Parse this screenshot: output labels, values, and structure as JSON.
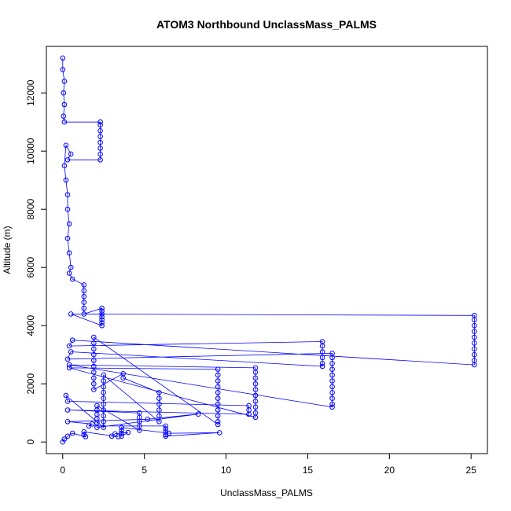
{
  "chart_data": {
    "type": "scatter",
    "title": "ATOM3 Northbound UnclassMass_PALMS",
    "xlabel": "UnclassMass_PALMS",
    "ylabel": "Altitude (m)",
    "xlim": [
      -1,
      26
    ],
    "ylim": [
      -400,
      13600
    ],
    "xticks": [
      0,
      5,
      10,
      15,
      20,
      25
    ],
    "yticks": [
      0,
      2000,
      4000,
      6000,
      8000,
      10000,
      12000
    ],
    "color": "#0000ff",
    "point_style": "open-circle",
    "connect_points": true,
    "grid": false,
    "series": [
      {
        "values": [
          [
            0,
            13200
          ],
          [
            0,
            12800
          ],
          [
            0.1,
            12400
          ],
          [
            0.05,
            12000
          ],
          [
            0.1,
            11600
          ],
          [
            0.05,
            11200
          ],
          [
            0.1,
            11000
          ],
          [
            2.3,
            11000
          ],
          [
            2.3,
            10900
          ],
          [
            2.3,
            10700
          ],
          [
            2.3,
            10500
          ],
          [
            2.3,
            10300
          ],
          [
            2.3,
            10100
          ],
          [
            2.3,
            9900
          ],
          [
            2.3,
            9700
          ],
          [
            0.3,
            9700
          ],
          [
            0.5,
            9900
          ],
          [
            0.2,
            10200
          ],
          [
            0.1,
            9500
          ],
          [
            0.2,
            9000
          ],
          [
            0.3,
            8500
          ],
          [
            0.3,
            8000
          ],
          [
            0.4,
            7500
          ],
          [
            0.3,
            7000
          ],
          [
            0.4,
            6500
          ],
          [
            0.5,
            6000
          ],
          [
            0.4,
            5800
          ],
          [
            0.6,
            5600
          ],
          [
            1.3,
            5400
          ],
          [
            1.3,
            5200
          ],
          [
            1.3,
            5000
          ],
          [
            1.3,
            4800
          ],
          [
            1.3,
            4600
          ],
          [
            1.3,
            4400
          ],
          [
            2.4,
            4600
          ],
          [
            2.4,
            4500
          ],
          [
            2.4,
            4400
          ],
          [
            2.4,
            4300
          ],
          [
            2.4,
            4200
          ],
          [
            2.4,
            4100
          ],
          [
            2.4,
            4000
          ],
          [
            0.5,
            4400
          ],
          [
            25.2,
            4350
          ],
          [
            25.2,
            4200
          ],
          [
            25.2,
            4000
          ],
          [
            25.2,
            3800
          ],
          [
            25.2,
            3600
          ],
          [
            25.2,
            3400
          ],
          [
            25.2,
            3200
          ],
          [
            25.2,
            3000
          ],
          [
            25.2,
            2800
          ],
          [
            25.2,
            2650
          ],
          [
            0.6,
            3500
          ],
          [
            0.4,
            3300
          ],
          [
            15.9,
            3450
          ],
          [
            15.9,
            3300
          ],
          [
            15.9,
            3100
          ],
          [
            15.9,
            2900
          ],
          [
            15.9,
            2700
          ],
          [
            15.9,
            2600
          ],
          [
            0.5,
            3100
          ],
          [
            0.3,
            2850
          ],
          [
            16.5,
            3050
          ],
          [
            16.5,
            2900
          ],
          [
            16.5,
            2700
          ],
          [
            16.5,
            2500
          ],
          [
            16.5,
            2300
          ],
          [
            16.5,
            2100
          ],
          [
            16.5,
            1900
          ],
          [
            16.5,
            1700
          ],
          [
            16.5,
            1500
          ],
          [
            16.5,
            1300
          ],
          [
            16.5,
            1200
          ],
          [
            0.4,
            2650
          ],
          [
            11.8,
            2550
          ],
          [
            11.8,
            2400
          ],
          [
            11.8,
            2200
          ],
          [
            11.8,
            2000
          ],
          [
            11.8,
            1800
          ],
          [
            11.8,
            1600
          ],
          [
            11.8,
            1400
          ],
          [
            11.8,
            1200
          ],
          [
            11.8,
            1000
          ],
          [
            11.8,
            850
          ],
          [
            0.4,
            2550
          ],
          [
            9.5,
            2500
          ],
          [
            9.5,
            2300
          ],
          [
            9.5,
            2100
          ],
          [
            9.5,
            1900
          ],
          [
            9.5,
            1700
          ],
          [
            9.5,
            1500
          ],
          [
            9.5,
            1300
          ],
          [
            9.5,
            1100
          ],
          [
            9.5,
            900
          ],
          [
            9.5,
            700
          ],
          [
            9.5,
            600
          ],
          [
            1.9,
            3600
          ],
          [
            1.9,
            3400
          ],
          [
            1.9,
            3200
          ],
          [
            1.9,
            3000
          ],
          [
            1.9,
            2800
          ],
          [
            1.9,
            2600
          ],
          [
            1.9,
            2400
          ],
          [
            1.9,
            2200
          ],
          [
            1.9,
            2000
          ],
          [
            1.9,
            1800
          ],
          [
            3.7,
            2350
          ],
          [
            3.7,
            2200
          ],
          [
            5.9,
            1700
          ],
          [
            5.9,
            1500
          ],
          [
            5.9,
            1300
          ],
          [
            5.9,
            1100
          ],
          [
            5.9,
            900
          ],
          [
            5.9,
            700
          ],
          [
            2.5,
            2300
          ],
          [
            2.5,
            2100
          ],
          [
            2.5,
            1900
          ],
          [
            2.5,
            1700
          ],
          [
            2.5,
            1500
          ],
          [
            2.5,
            1300
          ],
          [
            2.5,
            1100
          ],
          [
            2.5,
            900
          ],
          [
            2.5,
            700
          ],
          [
            2.5,
            500
          ],
          [
            0.2,
            1600
          ],
          [
            0.3,
            1400
          ],
          [
            11.4,
            1250
          ],
          [
            11.4,
            1100
          ],
          [
            11.4,
            950
          ],
          [
            0.3,
            1100
          ],
          [
            4.7,
            1000
          ],
          [
            4.7,
            850
          ],
          [
            4.7,
            700
          ],
          [
            4.7,
            550
          ],
          [
            4.7,
            400
          ],
          [
            2.1,
            1250
          ],
          [
            2.1,
            1100
          ],
          [
            2.1,
            950
          ],
          [
            2.1,
            800
          ],
          [
            2.1,
            650
          ],
          [
            2.1,
            500
          ],
          [
            8.3,
            960
          ],
          [
            5.2,
            780
          ],
          [
            0.3,
            700
          ],
          [
            1.8,
            620
          ],
          [
            1.6,
            550
          ],
          [
            6.3,
            550
          ],
          [
            6.3,
            450
          ],
          [
            6.3,
            350
          ],
          [
            6.3,
            250
          ],
          [
            6.3,
            200
          ],
          [
            9.6,
            320
          ],
          [
            6.5,
            300
          ],
          [
            3.6,
            500
          ],
          [
            3.6,
            400
          ],
          [
            3.6,
            300
          ],
          [
            3.6,
            200
          ],
          [
            4.0,
            330
          ],
          [
            3.2,
            280
          ],
          [
            3.0,
            200
          ],
          [
            3.4,
            180
          ],
          [
            1.3,
            350
          ],
          [
            1.3,
            250
          ],
          [
            1.4,
            180
          ],
          [
            0.6,
            300
          ],
          [
            0.3,
            200
          ],
          [
            0.1,
            100
          ],
          [
            0,
            0
          ]
        ]
      }
    ]
  }
}
